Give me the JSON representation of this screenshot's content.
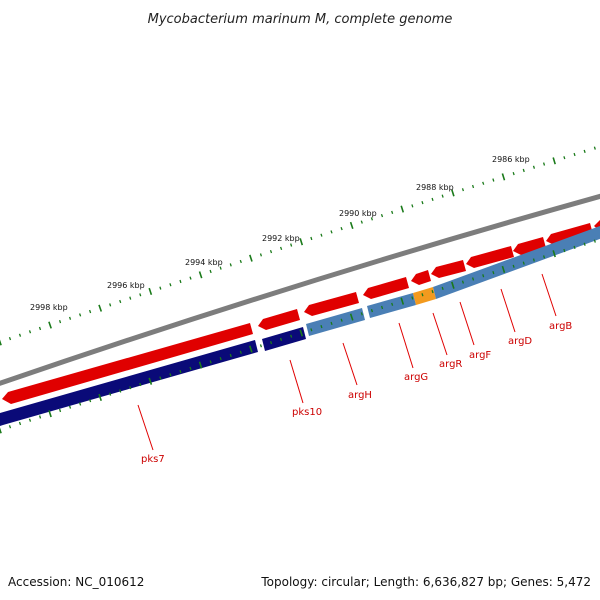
{
  "title": "Mycobacterium marinum M, complete genome",
  "footer": {
    "accession": "Accession: NC_010612",
    "summary": "Topology: circular; Length: 6,636,827 bp; Genes: 5,472"
  },
  "scale_labels": [
    "2998 kbp",
    "2996 kbp",
    "2994 kbp",
    "2992 kbp",
    "2990 kbp",
    "2988 kbp",
    "2986 kbp"
  ],
  "genes": [
    "pks7",
    "pks10",
    "argH",
    "argG",
    "argR",
    "argF",
    "argD",
    "argB"
  ],
  "colors": {
    "backbone": "#808080",
    "forward_feature": "#e00000",
    "cds_dark": "#0a0a78",
    "cds_light": "#4a7fb5",
    "highlight": "#f39a1e",
    "ticks": "#1a7a1a",
    "label": "#cc0000"
  }
}
